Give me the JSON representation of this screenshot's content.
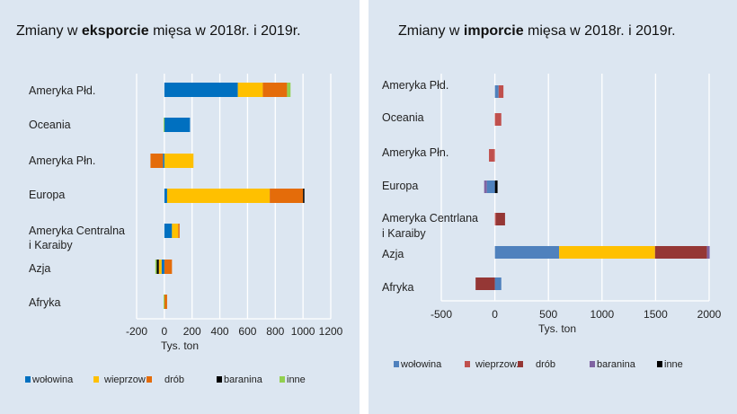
{
  "chart_data": [
    {
      "type": "bar",
      "orientation": "horizontal",
      "stacked": true,
      "title": {
        "pre": "Zmiany w ",
        "bold": "eksporcie",
        "post": " mięsa w 2018r. i 2019r."
      },
      "xlabel": "Tys. ton",
      "xlim": [
        -200,
        1200
      ],
      "xticks": [
        -200,
        0,
        200,
        400,
        600,
        800,
        1000,
        1200
      ],
      "grid": "vertical",
      "legend_position": "bottom",
      "series": [
        {
          "name": "wołowina",
          "color": "#0070c0"
        },
        {
          "name": "wieprzow",
          "color": "#ffc000"
        },
        {
          "name": "drób",
          "color": "#e46c0a"
        },
        {
          "name": "baranina",
          "color": "#000000"
        },
        {
          "name": "inne",
          "color": "#92d050"
        }
      ],
      "categories": [
        {
          "label": [
            "Ameryka Płd."
          ],
          "segments": [
            {
              "s": 0,
              "v": 530
            },
            {
              "s": 1,
              "v": 180
            },
            {
              "s": 2,
              "v": 175
            },
            {
              "s": 4,
              "v": 25
            }
          ]
        },
        {
          "label": [
            "Oceania"
          ],
          "segments": [
            {
              "s": 0,
              "v": 185
            },
            {
              "s": 4,
              "v": -5
            }
          ]
        },
        {
          "label": [
            "Ameryka Płn."
          ],
          "segments": [
            {
              "s": 1,
              "v": 210
            },
            {
              "s": 0,
              "v": -10
            },
            {
              "s": 2,
              "v": -90
            }
          ]
        },
        {
          "label": [
            "Europa"
          ],
          "segments": [
            {
              "s": 0,
              "v": 20
            },
            {
              "s": 1,
              "v": 740
            },
            {
              "s": 2,
              "v": 240
            },
            {
              "s": 3,
              "v": 10
            }
          ]
        },
        {
          "label": [
            "Ameryka Centralna",
            "i Karaiby"
          ],
          "segments": [
            {
              "s": 0,
              "v": 55
            },
            {
              "s": 1,
              "v": 45
            },
            {
              "s": 2,
              "v": 10
            }
          ]
        },
        {
          "label": [
            "Azja"
          ],
          "segments": [
            {
              "s": 2,
              "v": 55
            },
            {
              "s": 0,
              "v": -20
            },
            {
              "s": 1,
              "v": -20
            },
            {
              "s": 3,
              "v": -15
            },
            {
              "s": 4,
              "v": -10
            }
          ]
        },
        {
          "label": [
            "Afryka"
          ],
          "segments": [
            {
              "s": 2,
              "v": 20
            },
            {
              "s": 4,
              "v": -5
            }
          ]
        }
      ]
    },
    {
      "type": "bar",
      "orientation": "horizontal",
      "stacked": true,
      "title": {
        "pre": "Zmiany w ",
        "bold": "imporcie",
        "post": " mięsa w 2018r. i 2019r."
      },
      "xlabel": "Tys. ton",
      "xlim": [
        -500,
        2000
      ],
      "xticks": [
        -500,
        0,
        500,
        1000,
        1500,
        2000
      ],
      "grid": "vertical",
      "legend_position": "bottom",
      "series": [
        {
          "name": "wołowina",
          "color": "#4f81bd"
        },
        {
          "name": "wieprzow.",
          "color": "#c0504d"
        },
        {
          "name": "drób",
          "color": "#953735"
        },
        {
          "name": "baranina",
          "color": "#8064a2"
        },
        {
          "name": "inne",
          "color": "#000000"
        }
      ],
      "categories": [
        {
          "label": [
            "Ameryka Płd."
          ],
          "segments": [
            {
              "s": 0,
              "v": 35
            },
            {
              "s": 1,
              "v": 45
            }
          ]
        },
        {
          "label": [
            "Oceania"
          ],
          "segments": [
            {
              "s": 1,
              "v": 60
            }
          ]
        },
        {
          "label": [
            "Ameryka Płn."
          ],
          "segments": [
            {
              "s": 1,
              "v": -10
            },
            {
              "s": 1,
              "v": -45
            }
          ]
        },
        {
          "label": [
            "Europa"
          ],
          "segments": [
            {
              "s": 4,
              "v": 25
            },
            {
              "s": 0,
              "v": -75
            },
            {
              "s": 3,
              "v": -25
            }
          ]
        },
        {
          "label": [
            "Ameryka Centrlana",
            "i Karaiby"
          ],
          "segments": [
            {
              "s": 1,
              "v": 10
            },
            {
              "s": 2,
              "v": 85
            }
          ]
        },
        {
          "label": [
            "Azja"
          ],
          "segments": [
            {
              "s": 0,
              "v": 600
            },
            {
              "s": 1,
              "v": 895,
              "color": "#ffc000"
            },
            {
              "s": 2,
              "v": 485
            },
            {
              "s": 3,
              "v": 25
            }
          ]
        },
        {
          "label": [
            "Afryka"
          ],
          "segments": [
            {
              "s": 0,
              "v": 60
            },
            {
              "s": 2,
              "v": -180
            }
          ]
        }
      ]
    }
  ]
}
